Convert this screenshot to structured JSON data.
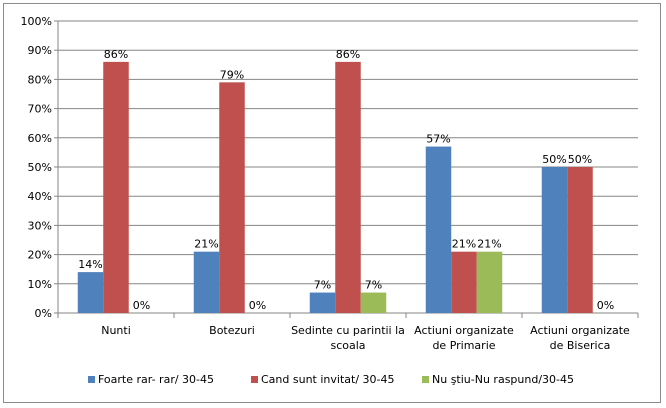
{
  "chart_data": {
    "type": "bar",
    "categories": [
      [
        "Nunti"
      ],
      [
        "Botezuri"
      ],
      [
        "Sedinte cu parintii la",
        "scoala"
      ],
      [
        "Actiuni organizate",
        "de Primarie"
      ],
      [
        "Actiuni organizate",
        "de Biserica"
      ]
    ],
    "series": [
      {
        "name": "Foarte rar- rar/ 30-45",
        "color": "#4f81bd",
        "values": [
          14,
          21,
          7,
          57,
          50
        ],
        "labels": [
          "14%",
          "21%",
          "7%",
          "57%",
          "50%"
        ]
      },
      {
        "name": "Cand sunt invitat/ 30-45",
        "color": "#c0504d",
        "values": [
          86,
          79,
          86,
          21,
          50
        ],
        "labels": [
          "86%",
          "79%",
          "86%",
          "21%",
          "50%"
        ]
      },
      {
        "name": "Nu ştiu-Nu raspund/30-45",
        "color": "#9bbb59",
        "values": [
          0,
          0,
          7,
          21,
          0
        ],
        "labels": [
          "0%",
          "0%",
          "7%",
          "21%",
          "0%"
        ]
      }
    ],
    "ylim": [
      0,
      100
    ],
    "yticks": [
      "0%",
      "10%",
      "20%",
      "30%",
      "40%",
      "50%",
      "60%",
      "70%",
      "80%",
      "90%",
      "100%"
    ],
    "grid": true,
    "legend": "bottom"
  }
}
